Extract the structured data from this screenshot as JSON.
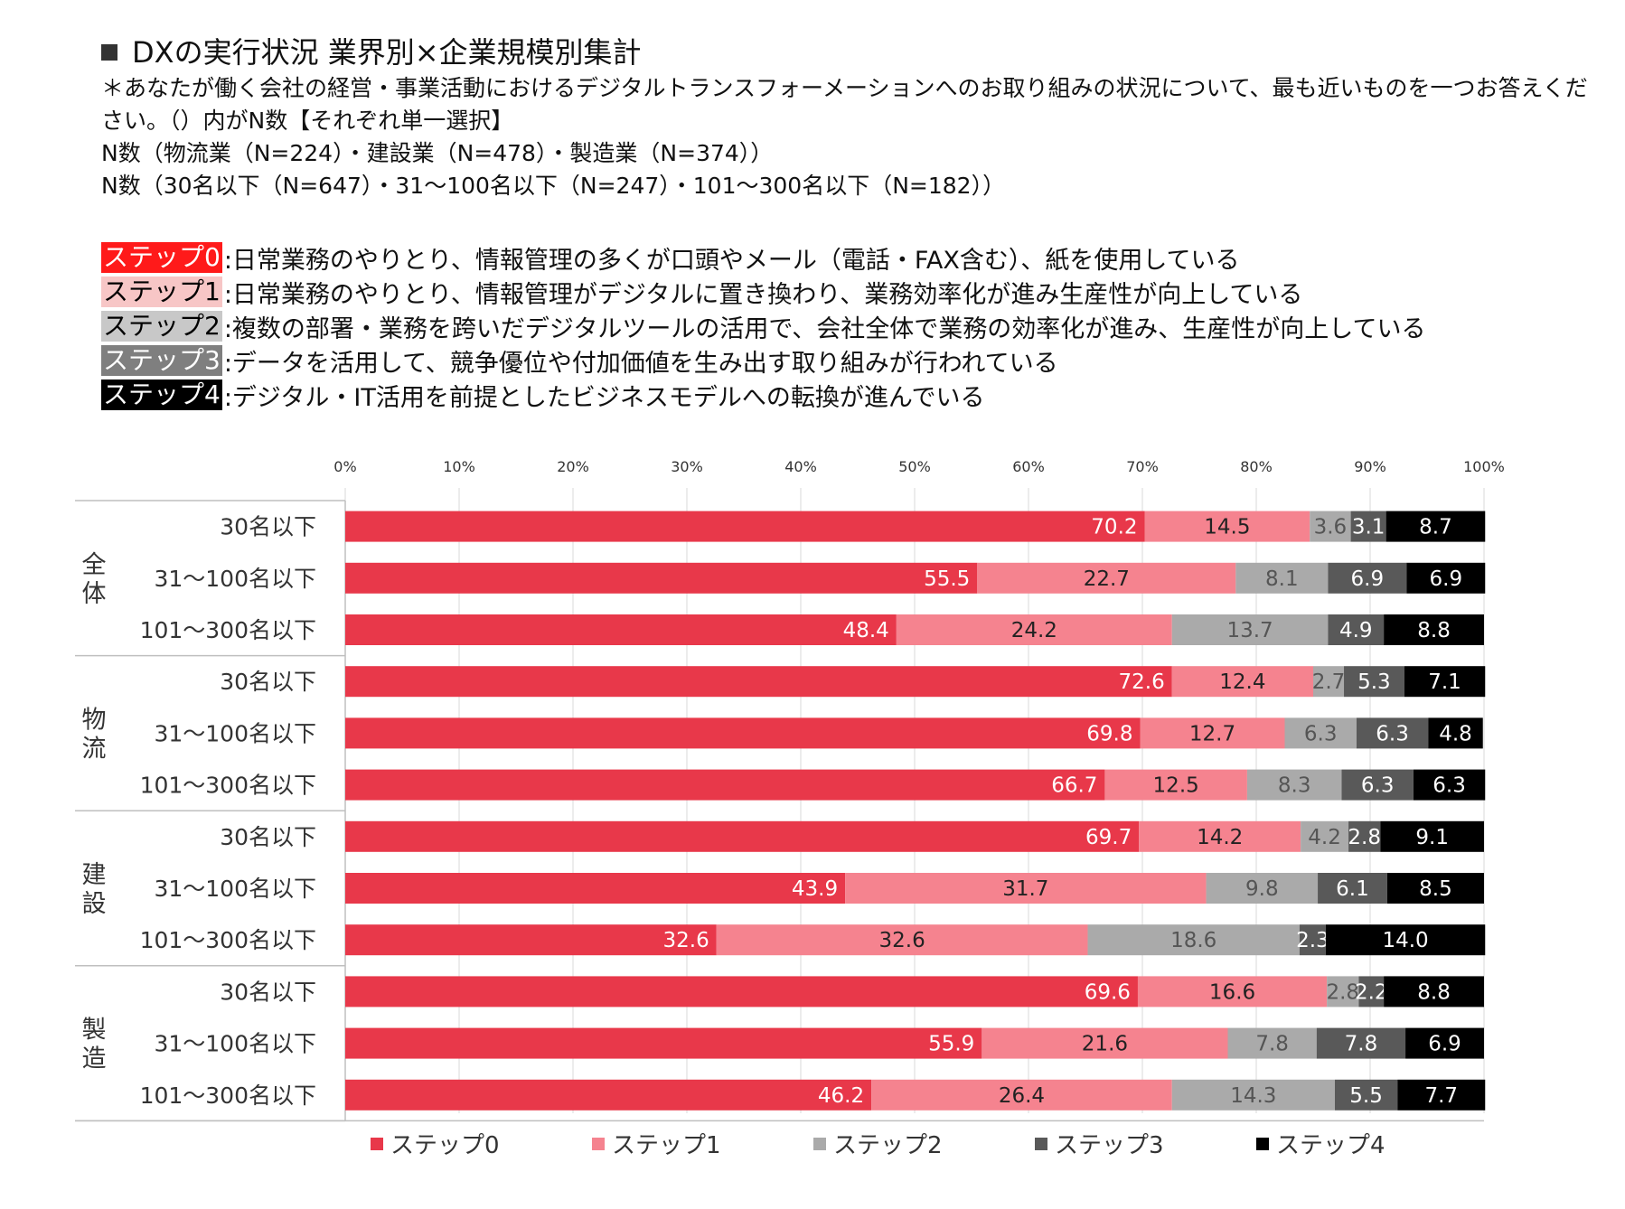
{
  "header": {
    "title": "DXの実行状況 業界別×企業規模別集計",
    "question": "＊あなたが働く会社の経営・事業活動におけるデジタルトランスフォーメーションへのお取り組みの状況について、最も近いものを一つお答えください。（）内がN数【それぞれ単一選択】",
    "n_industry": "N数（物流業（N=224）・建設業（N=478）・製造業（N=374））",
    "n_size": "N数（30名以下（N=647）・31～100名以下（N=247）・101～300名以下（N=182））"
  },
  "steps": [
    {
      "label": "ステップ0",
      "desc": ":日常業務のやりとり、情報管理の多くが口頭やメール（電話・FAX含む）、紙を使用している",
      "bg": "#ff1a1a",
      "fg": "#ffffff"
    },
    {
      "label": "ステップ1",
      "desc": ":日常業務のやりとり、情報管理がデジタルに置き換わり、業務効率化が進み生産性が向上している",
      "bg": "#f7c6c6",
      "fg": "#000000"
    },
    {
      "label": "ステップ2",
      "desc": ":複数の部署・業務を跨いだデジタルツールの活用で、会社全体で業務の効率化が進み、生産性が向上している",
      "bg": "#c8c8c8",
      "fg": "#000000"
    },
    {
      "label": "ステップ3",
      "desc": ":データを活用して、競争優位や付加価値を生み出す取り組みが行われている",
      "bg": "#7f7f7f",
      "fg": "#ffffff"
    },
    {
      "label": "ステップ4",
      "desc": ":デジタル・IT活用を前提としたビジネスモデルへの転換が進んでいる",
      "bg": "#000000",
      "fg": "#ffffff"
    }
  ],
  "chart_data": {
    "type": "bar",
    "orientation": "horizontal",
    "stacked": true,
    "xlim": [
      0,
      100
    ],
    "x_ticks": [
      "0%",
      "10%",
      "20%",
      "30%",
      "40%",
      "50%",
      "60%",
      "70%",
      "80%",
      "90%",
      "100%"
    ],
    "groups": [
      "全体",
      "物流",
      "建設",
      "製造"
    ],
    "categories": [
      "30名以下",
      "31～100名以下",
      "101～300名以下"
    ],
    "series": [
      {
        "name": "ステップ0",
        "color": "#e8384a",
        "label_color": "#ffffff"
      },
      {
        "name": "ステップ1",
        "color": "#f5838f",
        "label_color": "#222222"
      },
      {
        "name": "ステップ2",
        "color": "#aaaaaa",
        "label_color": "#555555"
      },
      {
        "name": "ステップ3",
        "color": "#595959",
        "label_color": "#ffffff"
      },
      {
        "name": "ステップ4",
        "color": "#000000",
        "label_color": "#ffffff"
      }
    ],
    "rows": [
      {
        "group": "全体",
        "category": "30名以下",
        "values": [
          70.2,
          14.5,
          3.6,
          3.1,
          8.7
        ],
        "labels": [
          "70.2",
          "14.5",
          "3.6",
          "3.1",
          "8.7"
        ]
      },
      {
        "group": "全体",
        "category": "31～100名以下",
        "values": [
          55.5,
          22.7,
          8.1,
          6.9,
          6.9
        ],
        "labels": [
          "55.5",
          "22.7",
          "8.1",
          "6.9",
          "6.9"
        ]
      },
      {
        "group": "全体",
        "category": "101～300名以下",
        "values": [
          48.4,
          24.2,
          13.7,
          4.9,
          8.8
        ],
        "labels": [
          "48.4",
          "24.2",
          "13.7",
          "4.9",
          "8.8"
        ]
      },
      {
        "group": "物流",
        "category": "30名以下",
        "values": [
          72.6,
          12.4,
          2.7,
          5.3,
          7.1
        ],
        "labels": [
          "72.6",
          "12.4",
          "2.7",
          "5.3",
          "7.1"
        ]
      },
      {
        "group": "物流",
        "category": "31～100名以下",
        "values": [
          69.8,
          12.7,
          6.3,
          6.3,
          4.8
        ],
        "labels": [
          "69.8",
          "12.7",
          "6.3",
          "6.3",
          "4.8"
        ]
      },
      {
        "group": "物流",
        "category": "101～300名以下",
        "values": [
          66.7,
          12.5,
          8.3,
          6.3,
          6.3
        ],
        "labels": [
          "66.7",
          "12.5",
          "8.3",
          "6.3",
          "6.3"
        ]
      },
      {
        "group": "建設",
        "category": "30名以下",
        "values": [
          69.7,
          14.2,
          4.2,
          2.8,
          9.1
        ],
        "labels": [
          "69.7",
          "14.2",
          "4.2",
          "2.8",
          "9.1"
        ]
      },
      {
        "group": "建設",
        "category": "31～100名以下",
        "values": [
          43.9,
          31.7,
          9.8,
          6.1,
          8.5
        ],
        "labels": [
          "43.9",
          "31.7",
          "9.8",
          "6.1",
          "8.5"
        ]
      },
      {
        "group": "建設",
        "category": "101～300名以下",
        "values": [
          32.6,
          32.6,
          18.6,
          2.3,
          14.0
        ],
        "labels": [
          "32.6",
          "32.6",
          "18.6",
          "2.3",
          "14.0"
        ]
      },
      {
        "group": "製造",
        "category": "30名以下",
        "values": [
          69.6,
          16.6,
          2.8,
          2.2,
          8.8
        ],
        "labels": [
          "69.6",
          "16.6",
          "2.8",
          "2.2",
          "8.8"
        ]
      },
      {
        "group": "製造",
        "category": "31～100名以下",
        "values": [
          55.9,
          21.6,
          7.8,
          7.8,
          6.9
        ],
        "labels": [
          "55.9",
          "21.6",
          "7.8",
          "7.8",
          "6.9"
        ]
      },
      {
        "group": "製造",
        "category": "101～300名以下",
        "values": [
          46.2,
          26.4,
          14.3,
          5.5,
          7.7
        ],
        "labels": [
          "46.2",
          "26.4",
          "14.3",
          "5.5",
          "7.7"
        ]
      }
    ],
    "legend": [
      "ステップ0",
      "ステップ1",
      "ステップ2",
      "ステップ3",
      "ステップ4"
    ],
    "legend_position": "bottom"
  }
}
